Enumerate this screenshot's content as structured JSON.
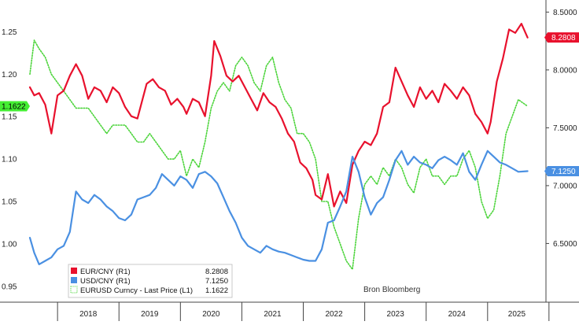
{
  "chart_data": {
    "type": "line",
    "source_note": "Bron Bloomberg",
    "x_ticks": [
      "2018",
      "2019",
      "2020",
      "2021",
      "2022",
      "2023",
      "2024",
      "2025"
    ],
    "x_range": [
      2017.55,
      2025.95
    ],
    "left_axis": {
      "ticks": [
        "0.95",
        "1.00",
        "1.05",
        "1.10",
        "1.15",
        "1.20",
        "1.25"
      ],
      "range": [
        0.935,
        1.28
      ]
    },
    "right_axis": {
      "ticks": [
        "6.5000",
        "7.0000",
        "7.5000",
        "8.0000",
        "8.5000"
      ],
      "range": [
        6.02,
        8.55
      ]
    },
    "grid": false,
    "legend": {
      "position": "bottom-left",
      "entries": [
        {
          "label": "EUR/CNY  (R1)",
          "value": "8.2808"
        },
        {
          "label": "USD/CNY  (R1)",
          "value": "7.1250"
        },
        {
          "label": "EURUSD Curncy - Last Price (L1)",
          "value": "1.1622"
        }
      ]
    },
    "last_value_tags": {
      "eurcny": "8.2808",
      "usdcny": "7.1250",
      "eurusd": "1.1622"
    },
    "colors": {
      "eurcny": "#e8112d",
      "usdcny": "#4a90e2",
      "eurusd": "#4cd43b",
      "eurusd_tag": "#44ee33",
      "axis": "#444444"
    },
    "series": [
      {
        "key": "eurcny",
        "axis": "right",
        "style": "solid",
        "x": [
          2017.55,
          2017.62,
          2017.7,
          2017.8,
          2017.9,
          2018.0,
          2018.1,
          2018.2,
          2018.3,
          2018.4,
          2018.5,
          2018.6,
          2018.7,
          2018.8,
          2018.9,
          2019.0,
          2019.1,
          2019.2,
          2019.3,
          2019.45,
          2019.55,
          2019.65,
          2019.75,
          2019.85,
          2019.95,
          2020.05,
          2020.1,
          2020.2,
          2020.3,
          2020.4,
          2020.5,
          2020.55,
          2020.65,
          2020.75,
          2020.85,
          2020.95,
          2021.05,
          2021.15,
          2021.25,
          2021.35,
          2021.45,
          2021.55,
          2021.65,
          2021.75,
          2021.85,
          2021.95,
          2022.05,
          2022.15,
          2022.2,
          2022.3,
          2022.4,
          2022.5,
          2022.6,
          2022.7,
          2022.8,
          2022.9,
          2023.0,
          2023.1,
          2023.2,
          2023.3,
          2023.4,
          2023.5,
          2023.6,
          2023.7,
          2023.8,
          2023.9,
          2024.0,
          2024.1,
          2024.2,
          2024.3,
          2024.4,
          2024.5,
          2024.6,
          2024.7,
          2024.8,
          2024.9,
          2025.0,
          2025.05,
          2025.15,
          2025.25,
          2025.35,
          2025.45,
          2025.55,
          2025.65
        ],
        "y": [
          7.85,
          7.78,
          7.8,
          7.7,
          7.45,
          7.78,
          7.82,
          7.95,
          8.05,
          7.95,
          7.75,
          7.85,
          7.82,
          7.72,
          7.85,
          7.8,
          7.68,
          7.6,
          7.58,
          7.88,
          7.92,
          7.85,
          7.82,
          7.7,
          7.75,
          7.68,
          7.62,
          7.75,
          7.72,
          7.6,
          7.95,
          8.25,
          8.12,
          7.95,
          7.9,
          7.95,
          7.85,
          7.75,
          7.65,
          7.8,
          7.72,
          7.68,
          7.58,
          7.45,
          7.38,
          7.2,
          7.15,
          7.05,
          6.92,
          6.88,
          7.1,
          6.82,
          6.95,
          6.85,
          7.18,
          7.3,
          7.38,
          7.35,
          7.45,
          7.68,
          7.72,
          8.02,
          7.9,
          7.78,
          7.68,
          7.85,
          7.75,
          7.82,
          7.72,
          7.88,
          7.82,
          7.75,
          7.85,
          7.78,
          7.62,
          7.55,
          7.45,
          7.55,
          7.9,
          8.1,
          8.35,
          8.32,
          8.4,
          8.28
        ]
      },
      {
        "key": "usdcny",
        "axis": "right",
        "style": "solid",
        "x": [
          2017.55,
          2017.62,
          2017.7,
          2017.8,
          2017.9,
          2018.0,
          2018.1,
          2018.2,
          2018.3,
          2018.4,
          2018.5,
          2018.6,
          2018.7,
          2018.8,
          2018.9,
          2019.0,
          2019.1,
          2019.2,
          2019.3,
          2019.4,
          2019.5,
          2019.6,
          2019.7,
          2019.8,
          2019.9,
          2020.0,
          2020.1,
          2020.2,
          2020.3,
          2020.4,
          2020.5,
          2020.6,
          2020.7,
          2020.8,
          2020.9,
          2021.0,
          2021.1,
          2021.2,
          2021.3,
          2021.4,
          2021.5,
          2021.6,
          2021.7,
          2021.8,
          2021.9,
          2022.0,
          2022.1,
          2022.2,
          2022.3,
          2022.4,
          2022.5,
          2022.6,
          2022.7,
          2022.8,
          2022.9,
          2023.0,
          2023.1,
          2023.2,
          2023.3,
          2023.4,
          2023.5,
          2023.6,
          2023.7,
          2023.8,
          2023.9,
          2024.0,
          2024.1,
          2024.2,
          2024.3,
          2024.4,
          2024.5,
          2024.6,
          2024.7,
          2024.8,
          2024.9,
          2025.0,
          2025.1,
          2025.2,
          2025.3,
          2025.4,
          2025.5,
          2025.65
        ],
        "y": [
          6.55,
          6.42,
          6.32,
          6.35,
          6.38,
          6.45,
          6.48,
          6.6,
          6.95,
          6.88,
          6.85,
          6.92,
          6.88,
          6.82,
          6.78,
          6.72,
          6.7,
          6.75,
          6.88,
          6.9,
          6.92,
          6.98,
          7.1,
          7.05,
          7.0,
          7.08,
          7.05,
          6.98,
          7.1,
          7.12,
          7.08,
          7.02,
          6.9,
          6.78,
          6.68,
          6.55,
          6.48,
          6.45,
          6.42,
          6.48,
          6.45,
          6.43,
          6.42,
          6.4,
          6.38,
          6.36,
          6.35,
          6.35,
          6.45,
          6.68,
          6.7,
          6.82,
          6.95,
          7.25,
          7.12,
          6.9,
          6.75,
          6.85,
          6.9,
          7.05,
          7.22,
          7.3,
          7.18,
          7.25,
          7.2,
          7.18,
          7.15,
          7.22,
          7.25,
          7.22,
          7.18,
          7.28,
          7.12,
          7.05,
          7.18,
          7.3,
          7.25,
          7.2,
          7.18,
          7.15,
          7.12,
          7.125
        ]
      },
      {
        "key": "eurusd",
        "axis": "left",
        "style": "dotted",
        "x": [
          2017.55,
          2017.62,
          2017.7,
          2017.8,
          2017.9,
          2018.0,
          2018.1,
          2018.2,
          2018.3,
          2018.4,
          2018.5,
          2018.6,
          2018.7,
          2018.8,
          2018.9,
          2019.0,
          2019.1,
          2019.2,
          2019.3,
          2019.4,
          2019.5,
          2019.6,
          2019.7,
          2019.8,
          2019.9,
          2020.0,
          2020.1,
          2020.2,
          2020.3,
          2020.4,
          2020.5,
          2020.6,
          2020.7,
          2020.8,
          2020.9,
          2021.0,
          2021.1,
          2021.2,
          2021.3,
          2021.4,
          2021.5,
          2021.6,
          2021.7,
          2021.8,
          2021.9,
          2022.0,
          2022.1,
          2022.2,
          2022.3,
          2022.4,
          2022.5,
          2022.6,
          2022.7,
          2022.8,
          2022.9,
          2023.0,
          2023.1,
          2023.2,
          2023.3,
          2023.4,
          2023.5,
          2023.6,
          2023.7,
          2023.8,
          2023.9,
          2024.0,
          2024.1,
          2024.2,
          2024.3,
          2024.4,
          2024.5,
          2024.6,
          2024.7,
          2024.8,
          2024.9,
          2025.0,
          2025.1,
          2025.2,
          2025.3,
          2025.4,
          2025.5,
          2025.65
        ],
        "y": [
          1.2,
          1.24,
          1.23,
          1.22,
          1.2,
          1.19,
          1.18,
          1.17,
          1.16,
          1.16,
          1.16,
          1.15,
          1.14,
          1.13,
          1.14,
          1.14,
          1.14,
          1.13,
          1.12,
          1.12,
          1.13,
          1.12,
          1.11,
          1.1,
          1.1,
          1.11,
          1.08,
          1.1,
          1.09,
          1.12,
          1.16,
          1.18,
          1.19,
          1.18,
          1.21,
          1.22,
          1.21,
          1.19,
          1.18,
          1.21,
          1.22,
          1.19,
          1.17,
          1.16,
          1.13,
          1.13,
          1.12,
          1.1,
          1.05,
          1.05,
          1.02,
          1.0,
          0.98,
          0.97,
          1.03,
          1.07,
          1.08,
          1.07,
          1.09,
          1.08,
          1.1,
          1.09,
          1.07,
          1.06,
          1.09,
          1.1,
          1.08,
          1.08,
          1.07,
          1.08,
          1.08,
          1.1,
          1.11,
          1.09,
          1.05,
          1.03,
          1.04,
          1.08,
          1.13,
          1.15,
          1.17,
          1.1622
        ]
      }
    ]
  }
}
